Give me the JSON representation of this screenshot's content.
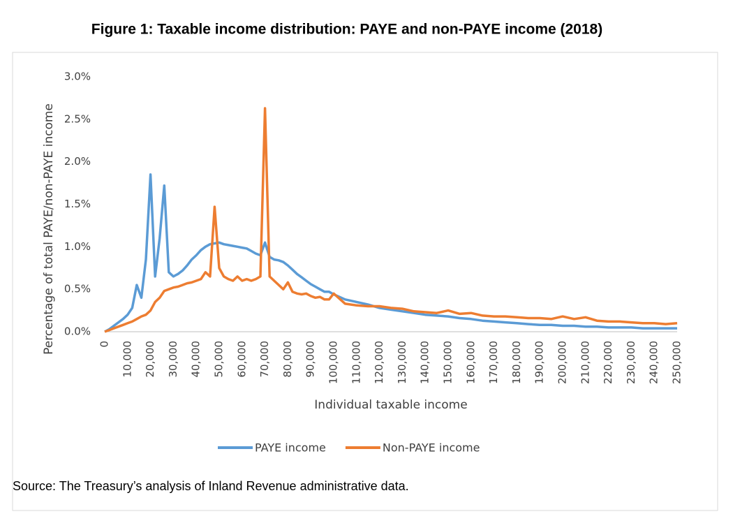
{
  "chart_data": {
    "type": "line",
    "title": "Figure 1: Taxable income distribution: PAYE and non-PAYE income (2018)",
    "x_label": "Individual taxable income",
    "y_label": "Percentage of total PAYE/non-PAYE income",
    "source": "Source: The Treasury’s analysis of Inland Revenue administrative data.",
    "x": [
      0,
      2000,
      4000,
      6000,
      8000,
      10000,
      12000,
      14000,
      16000,
      18000,
      20000,
      22000,
      24000,
      26000,
      28000,
      30000,
      32000,
      34000,
      36000,
      38000,
      40000,
      42000,
      44000,
      46000,
      48000,
      50000,
      52000,
      54000,
      56000,
      58000,
      60000,
      62000,
      64000,
      66000,
      68000,
      70000,
      72000,
      74000,
      76000,
      78000,
      80000,
      82000,
      84000,
      86000,
      88000,
      90000,
      92000,
      94000,
      96000,
      98000,
      100000,
      105000,
      110000,
      115000,
      120000,
      125000,
      130000,
      135000,
      140000,
      145000,
      150000,
      155000,
      160000,
      165000,
      170000,
      175000,
      180000,
      185000,
      190000,
      195000,
      200000,
      205000,
      210000,
      215000,
      220000,
      225000,
      230000,
      235000,
      240000,
      245000,
      250000
    ],
    "series": [
      {
        "name": "PAYE income",
        "color": "#5b9bd5",
        "values": [
          0,
          0.03,
          0.07,
          0.11,
          0.15,
          0.2,
          0.28,
          0.55,
          0.4,
          0.85,
          1.85,
          0.65,
          1.1,
          1.72,
          0.7,
          0.65,
          0.68,
          0.72,
          0.78,
          0.85,
          0.9,
          0.96,
          1.0,
          1.03,
          1.04,
          1.05,
          1.03,
          1.02,
          1.01,
          1.0,
          0.99,
          0.98,
          0.95,
          0.92,
          0.9,
          1.05,
          0.88,
          0.85,
          0.84,
          0.82,
          0.78,
          0.73,
          0.68,
          0.64,
          0.6,
          0.56,
          0.53,
          0.5,
          0.47,
          0.47,
          0.44,
          0.38,
          0.35,
          0.32,
          0.28,
          0.26,
          0.24,
          0.22,
          0.2,
          0.19,
          0.18,
          0.16,
          0.15,
          0.13,
          0.12,
          0.11,
          0.1,
          0.09,
          0.08,
          0.08,
          0.07,
          0.07,
          0.06,
          0.06,
          0.05,
          0.05,
          0.05,
          0.04,
          0.04,
          0.04,
          0.04
        ]
      },
      {
        "name": "Non-PAYE income",
        "color": "#ed7d31",
        "values": [
          0,
          0.02,
          0.04,
          0.06,
          0.08,
          0.1,
          0.12,
          0.15,
          0.18,
          0.2,
          0.25,
          0.35,
          0.4,
          0.48,
          0.5,
          0.52,
          0.53,
          0.55,
          0.57,
          0.58,
          0.6,
          0.62,
          0.7,
          0.65,
          1.47,
          0.75,
          0.65,
          0.62,
          0.6,
          0.65,
          0.6,
          0.62,
          0.6,
          0.62,
          0.65,
          2.63,
          0.65,
          0.6,
          0.55,
          0.5,
          0.58,
          0.47,
          0.45,
          0.44,
          0.45,
          0.42,
          0.4,
          0.41,
          0.38,
          0.38,
          0.45,
          0.33,
          0.31,
          0.3,
          0.3,
          0.28,
          0.27,
          0.24,
          0.23,
          0.22,
          0.25,
          0.21,
          0.22,
          0.19,
          0.18,
          0.18,
          0.17,
          0.16,
          0.16,
          0.15,
          0.18,
          0.15,
          0.17,
          0.13,
          0.12,
          0.12,
          0.11,
          0.1,
          0.1,
          0.09,
          0.1
        ]
      }
    ],
    "xlim": [
      0,
      250000
    ],
    "xticks": [
      0,
      {
        "value": 10000,
        "label": "10,000"
      },
      {
        "value": 20000,
        "label": "20,000"
      },
      {
        "value": 30000,
        "label": "30,000"
      },
      {
        "value": 40000,
        "label": "40,000"
      },
      {
        "value": 50000,
        "label": "50,000"
      },
      {
        "value": 60000,
        "label": "60,000"
      },
      {
        "value": 70000,
        "label": "70,000"
      },
      {
        "value": 80000,
        "label": "80,000"
      },
      {
        "value": 90000,
        "label": "90,000"
      },
      {
        "value": 100000,
        "label": "100,000"
      },
      {
        "value": 110000,
        "label": "110,000"
      },
      {
        "value": 120000,
        "label": "120,000"
      },
      {
        "value": 130000,
        "label": "130,000"
      },
      {
        "value": 140000,
        "label": "140,000"
      },
      {
        "value": 150000,
        "label": "150,000"
      },
      {
        "value": 160000,
        "label": "160,000"
      },
      {
        "value": 170000,
        "label": "170,000"
      },
      {
        "value": 180000,
        "label": "180,000"
      },
      {
        "value": 190000,
        "label": "190,000"
      },
      {
        "value": 200000,
        "label": "200,000"
      },
      {
        "value": 210000,
        "label": "210,000"
      },
      {
        "value": 220000,
        "label": "220,000"
      },
      {
        "value": 230000,
        "label": "230,000"
      },
      {
        "value": 240000,
        "label": "240,000"
      },
      {
        "value": 250000,
        "label": "250,000"
      }
    ],
    "ylim": [
      0,
      3.0
    ],
    "yticks": [
      {
        "value": 0,
        "label": "0.0%"
      },
      {
        "value": 0.5,
        "label": "0.5%"
      },
      {
        "value": 1.0,
        "label": "1.0%"
      },
      {
        "value": 1.5,
        "label": "1.5%"
      },
      {
        "value": 2.0,
        "label": "2.0%"
      },
      {
        "value": 2.5,
        "label": "2.5%"
      },
      {
        "value": 3.0,
        "label": "3.0%"
      }
    ],
    "grid": false,
    "legend": "bottom"
  }
}
